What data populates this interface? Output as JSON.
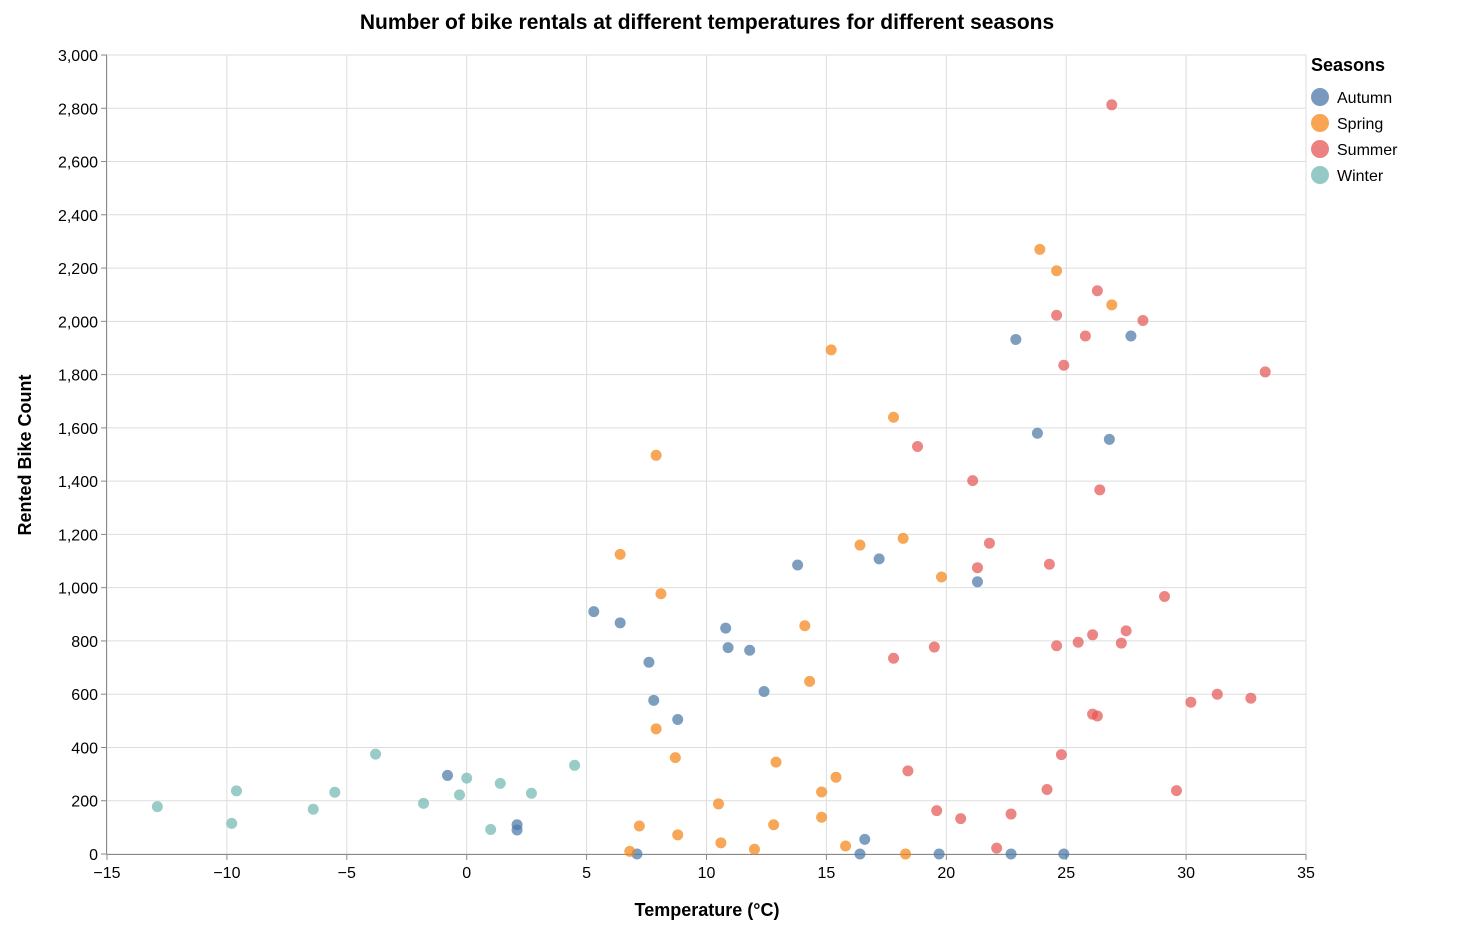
{
  "chart_data": {
    "type": "scatter",
    "title": "Number of bike rentals at different temperatures for different seasons",
    "xlabel": "Temperature (°C)",
    "ylabel": "Rented Bike Count",
    "xlim": [
      -15,
      35
    ],
    "ylim": [
      0,
      3000
    ],
    "x_ticks": [
      -15,
      -10,
      -5,
      0,
      5,
      10,
      15,
      20,
      25,
      30,
      35
    ],
    "x_tick_labels": [
      "−15",
      "−10",
      "−5",
      "0",
      "5",
      "10",
      "15",
      "20",
      "25",
      "30",
      "35"
    ],
    "y_ticks": [
      0,
      200,
      400,
      600,
      800,
      1000,
      1200,
      1400,
      1600,
      1800,
      2000,
      2200,
      2400,
      2600,
      2800,
      3000
    ],
    "y_tick_labels": [
      "0",
      "200",
      "400",
      "600",
      "800",
      "1,000",
      "1,200",
      "1,400",
      "1,600",
      "1,800",
      "2,000",
      "2,200",
      "2,400",
      "2,600",
      "2,800",
      "3,000"
    ],
    "grid": true,
    "legend": {
      "title": "Seasons",
      "position": "top-right"
    },
    "series": [
      {
        "name": "Autumn",
        "color": "#4c78a8",
        "points": [
          [
            -0.8,
            295
          ],
          [
            2.1,
            110
          ],
          [
            2.1,
            90
          ],
          [
            5.3,
            910
          ],
          [
            6.4,
            868
          ],
          [
            7.6,
            720
          ],
          [
            7.8,
            577
          ],
          [
            8.8,
            505
          ],
          [
            7.1,
            0
          ],
          [
            10.8,
            848
          ],
          [
            10.9,
            775
          ],
          [
            11.8,
            765
          ],
          [
            12.4,
            610
          ],
          [
            13.8,
            1085
          ],
          [
            16.4,
            0
          ],
          [
            16.6,
            55
          ],
          [
            17.2,
            1108
          ],
          [
            19.7,
            0
          ],
          [
            21.3,
            1022
          ],
          [
            22.7,
            0
          ],
          [
            22.9,
            1932
          ],
          [
            23.8,
            1580
          ],
          [
            24.9,
            0
          ],
          [
            26.8,
            1557
          ],
          [
            27.7,
            1945
          ]
        ]
      },
      {
        "name": "Spring",
        "color": "#f58518",
        "points": [
          [
            6.4,
            1125
          ],
          [
            6.8,
            10
          ],
          [
            7.2,
            105
          ],
          [
            7.9,
            1497
          ],
          [
            7.9,
            470
          ],
          [
            8.1,
            977
          ],
          [
            8.7,
            362
          ],
          [
            8.8,
            72
          ],
          [
            10.5,
            188
          ],
          [
            10.6,
            42
          ],
          [
            12.0,
            18
          ],
          [
            12.8,
            110
          ],
          [
            12.9,
            345
          ],
          [
            14.1,
            857
          ],
          [
            14.3,
            648
          ],
          [
            14.8,
            233
          ],
          [
            14.8,
            138
          ],
          [
            15.2,
            1893
          ],
          [
            15.4,
            288
          ],
          [
            15.8,
            30
          ],
          [
            16.4,
            1160
          ],
          [
            17.8,
            1640
          ],
          [
            18.2,
            1185
          ],
          [
            18.3,
            0
          ],
          [
            19.8,
            1040
          ],
          [
            23.9,
            2270
          ],
          [
            24.6,
            2190
          ],
          [
            26.9,
            2062
          ]
        ]
      },
      {
        "name": "Summer",
        "color": "#e45756",
        "points": [
          [
            17.8,
            735
          ],
          [
            18.4,
            312
          ],
          [
            18.8,
            1530
          ],
          [
            19.5,
            777
          ],
          [
            19.6,
            163
          ],
          [
            20.6,
            133
          ],
          [
            21.1,
            1402
          ],
          [
            21.3,
            1075
          ],
          [
            21.8,
            1167
          ],
          [
            22.1,
            22
          ],
          [
            22.7,
            150
          ],
          [
            24.2,
            242
          ],
          [
            24.3,
            1088
          ],
          [
            24.6,
            2023
          ],
          [
            24.6,
            782
          ],
          [
            24.8,
            373
          ],
          [
            24.9,
            1835
          ],
          [
            25.5,
            795
          ],
          [
            25.8,
            1945
          ],
          [
            26.1,
            823
          ],
          [
            26.1,
            525
          ],
          [
            26.3,
            2115
          ],
          [
            26.3,
            518
          ],
          [
            26.4,
            1367
          ],
          [
            26.9,
            2813
          ],
          [
            27.3,
            792
          ],
          [
            27.5,
            838
          ],
          [
            28.2,
            2003
          ],
          [
            29.1,
            967
          ],
          [
            29.6,
            238
          ],
          [
            30.2,
            570
          ],
          [
            31.3,
            600
          ],
          [
            32.7,
            585
          ],
          [
            33.3,
            1810
          ]
        ]
      },
      {
        "name": "Winter",
        "color": "#72b7b2",
        "points": [
          [
            -12.9,
            178
          ],
          [
            -9.8,
            115
          ],
          [
            -9.6,
            237
          ],
          [
            -6.4,
            168
          ],
          [
            -5.5,
            232
          ],
          [
            -3.8,
            375
          ],
          [
            -1.8,
            190
          ],
          [
            -0.3,
            222
          ],
          [
            0.0,
            285
          ],
          [
            1.0,
            92
          ],
          [
            1.4,
            265
          ],
          [
            2.7,
            228
          ],
          [
            4.5,
            333
          ]
        ]
      }
    ]
  }
}
